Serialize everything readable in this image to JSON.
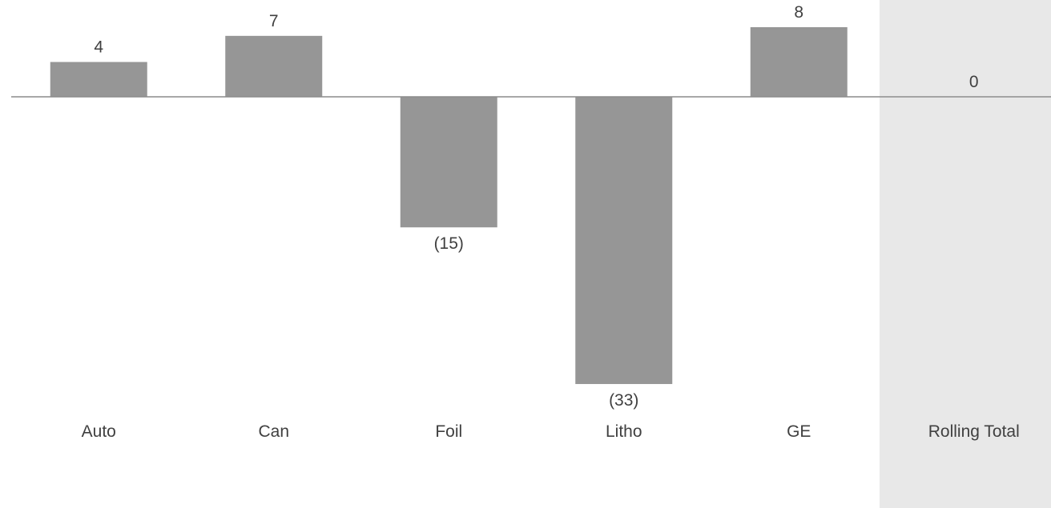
{
  "chart_data": {
    "type": "bar",
    "categories": [
      "Auto",
      "Can",
      "Foil",
      "Litho",
      "GE",
      "Rolling Total"
    ],
    "values": [
      4,
      7,
      -15,
      -33,
      8,
      0
    ],
    "value_labels": [
      "4",
      "7",
      "(15)",
      "(33)",
      "8",
      "0"
    ],
    "title": "",
    "xlabel": "",
    "ylabel": "",
    "ylim": [
      -33,
      8
    ],
    "grid": false,
    "legend": "none",
    "highlighted_category": "Rolling Total"
  },
  "colors": {
    "bar": "#969696",
    "baseline": "#8c8c8c",
    "highlight_band": "#e8e8e8",
    "text": "#404040"
  }
}
